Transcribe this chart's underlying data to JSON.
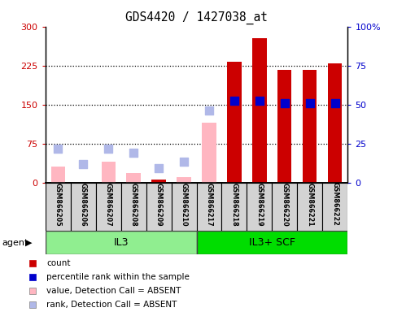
{
  "title": "GDS4420 / 1427038_at",
  "samples": [
    "GSM866205",
    "GSM866206",
    "GSM866207",
    "GSM866208",
    "GSM866209",
    "GSM866210",
    "GSM866217",
    "GSM866218",
    "GSM866219",
    "GSM866220",
    "GSM866221",
    "GSM866222"
  ],
  "groups": [
    {
      "name": "IL3",
      "indices": [
        0,
        1,
        2,
        3,
        4,
        5
      ],
      "color": "#90ee90"
    },
    {
      "name": "IL3+ SCF",
      "indices": [
        6,
        7,
        8,
        9,
        10,
        11
      ],
      "color": "#00dd00"
    }
  ],
  "count": [
    null,
    null,
    null,
    null,
    5,
    null,
    null,
    233,
    278,
    216,
    216,
    229
  ],
  "percentile_rank": [
    null,
    null,
    null,
    null,
    null,
    null,
    null,
    157,
    157,
    153,
    152,
    152
  ],
  "value_absent": [
    30,
    null,
    40,
    18,
    null,
    10,
    115,
    null,
    null,
    null,
    null,
    null
  ],
  "rank_absent": [
    65,
    35,
    65,
    58,
    28,
    40,
    138,
    null,
    null,
    null,
    null,
    null
  ],
  "ylim_left": [
    0,
    300
  ],
  "ylim_right": [
    0,
    100
  ],
  "yticks_left": [
    0,
    75,
    150,
    225,
    300
  ],
  "yticks_right": [
    0,
    25,
    50,
    75,
    100
  ],
  "ytick_labels_left": [
    "0",
    "75",
    "150",
    "225",
    "300"
  ],
  "ytick_labels_right": [
    "0",
    "25",
    "50",
    "75",
    "100%"
  ],
  "count_color": "#cc0000",
  "percentile_color": "#0000cc",
  "value_absent_color": "#ffb6c1",
  "rank_absent_color": "#b0b8e8",
  "bar_width": 0.55,
  "marker_size": 55,
  "background_color": "#ffffff",
  "plot_bg": "#ffffff",
  "left_label_color": "#cc0000",
  "right_label_color": "#0000cc",
  "agent_label": "agent"
}
